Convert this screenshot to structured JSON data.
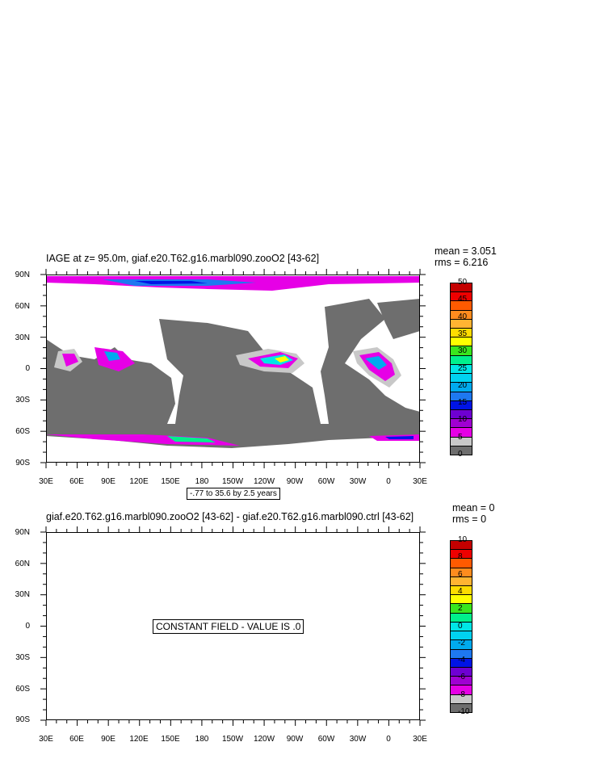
{
  "top": {
    "title": "IAGE at z=  95.0m, giaf.e20.T62.g16.marbl090.zooO2 [43-62]",
    "mean": "mean = 3.051",
    "rms": "rms = 6.216",
    "contour_note": "-.77 to 35.6 by 2.5 years",
    "colorbar_labels": [
      "50",
      "45",
      "40",
      "35",
      "30",
      "25",
      "20",
      "15",
      "10",
      "5",
      "0"
    ],
    "colorbar_colors": [
      "#c40000",
      "#ee0000",
      "#ff5a00",
      "#ff8c1e",
      "#ffb432",
      "#ffdc00",
      "#ffff00",
      "#39e61e",
      "#00f08c",
      "#00e6e6",
      "#00d2f0",
      "#00aaee",
      "#1e78f0",
      "#0014e6",
      "#6e00d2",
      "#a000d2",
      "#e600e6",
      "#c8c8c8",
      "#6e6e6e"
    ]
  },
  "bottom": {
    "title": "giaf.e20.T62.g16.marbl090.zooO2 [43-62] - giaf.e20.T62.g16.marbl090.ctrl [43-62]",
    "mean": "mean = 0",
    "rms": "rms = 0",
    "constant_note": "CONSTANT FIELD - VALUE IS .0",
    "colorbar_labels": [
      "10",
      "8",
      "6",
      "4",
      "2",
      "0",
      "-2",
      "-4",
      "-6",
      "-8",
      "-10"
    ],
    "colorbar_colors": [
      "#c40000",
      "#ee0000",
      "#ff5a00",
      "#ff8c1e",
      "#ffb432",
      "#ffdc00",
      "#ffff00",
      "#39e61e",
      "#00f08c",
      "#00e6e6",
      "#00d2f0",
      "#00aaee",
      "#1e78f0",
      "#0014e6",
      "#6e00d2",
      "#a000d2",
      "#e600e6",
      "#c8c8c8",
      "#6e6e6e"
    ]
  },
  "axes": {
    "lat_labels": [
      "90N",
      "60N",
      "30N",
      "0",
      "30S",
      "60S",
      "90S"
    ],
    "lon_labels": [
      "30E",
      "60E",
      "90E",
      "120E",
      "150E",
      "180",
      "150W",
      "120W",
      "90W",
      "60W",
      "30W",
      "0",
      "30E"
    ]
  },
  "colors": {
    "ocean_gray": "#6e6e6e",
    "land_white": "#ffffff",
    "light_gray": "#c8c8c8",
    "magenta": "#e600e6"
  }
}
